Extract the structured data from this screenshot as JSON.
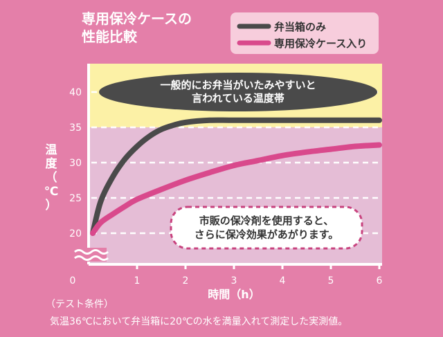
{
  "chart_data": {
    "type": "line",
    "title": "専用保冷ケースの\n性能比較",
    "xlabel": "時間（h）",
    "ylabel": "温度（℃）",
    "x_origin_label": "0",
    "x_ticks": [
      1,
      2,
      3,
      4,
      5,
      6
    ],
    "y_ticks": [
      20,
      25,
      30,
      35,
      40
    ],
    "xlim": [
      0,
      6
    ],
    "y_axis_break": true,
    "grid": true,
    "legend_position": "top-right",
    "series": [
      {
        "name": "弁当箱のみ",
        "color": "#4A4A4A",
        "x": [
          0,
          0.25,
          0.5,
          0.75,
          1,
          1.25,
          1.5,
          1.75,
          2,
          2.5,
          3,
          4,
          5,
          6
        ],
        "y": [
          20,
          24.5,
          28,
          30.5,
          32.3,
          33.7,
          34.7,
          35.3,
          35.7,
          36,
          36,
          36,
          36,
          36
        ]
      },
      {
        "name": "専用保冷ケース入り",
        "color": "#D9498C",
        "x": [
          0,
          0.25,
          0.5,
          0.75,
          1,
          1.5,
          2,
          2.5,
          3,
          3.5,
          4,
          4.5,
          5,
          5.5,
          6
        ],
        "y": [
          20,
          21.5,
          22.7,
          23.8,
          24.8,
          26.2,
          27.5,
          28.6,
          29.6,
          30.3,
          31,
          31.5,
          31.9,
          32.3,
          32.5
        ]
      }
    ],
    "bands": [
      {
        "y_range": [
          35,
          44.5
        ],
        "color": "#FCF1A6",
        "label": "一般的にお弁当がいたみやすいと\n言われている温度帯"
      }
    ],
    "annotations": [
      {
        "text": "市販の保冷剤を使用すると、\nさらに保冷効果があがります。"
      }
    ],
    "footnote": [
      "（テスト条件）",
      "気温36℃において弁当箱に20℃の水を満量入れて測定した実測値。"
    ]
  },
  "colors": {
    "background": "#E47FA9",
    "plot_area": "#E5BDD6",
    "band": "#FCF1A6",
    "band_label_bg": "#4A4A4A",
    "legend_bg": "#F7CDDC"
  }
}
